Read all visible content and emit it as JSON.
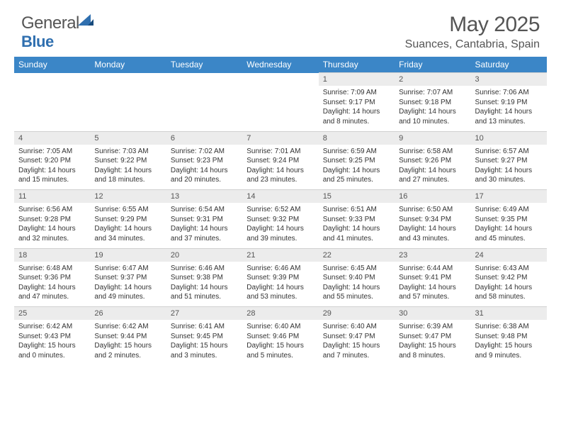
{
  "logo": {
    "general": "General",
    "blue": "Blue"
  },
  "title": "May 2025",
  "location": "Suances, Cantabria, Spain",
  "colors": {
    "header_bg": "#3b86c7",
    "header_text": "#ffffff",
    "daynum_bg": "#ececec",
    "text": "#555555",
    "logo_blue": "#2f6faf"
  },
  "day_names": [
    "Sunday",
    "Monday",
    "Tuesday",
    "Wednesday",
    "Thursday",
    "Friday",
    "Saturday"
  ],
  "weeks": [
    {
      "nums": [
        "",
        "",
        "",
        "",
        "1",
        "2",
        "3"
      ],
      "cells": [
        null,
        null,
        null,
        null,
        {
          "sr": "7:09 AM",
          "ss": "9:17 PM",
          "dl": "14 hours and 8 minutes."
        },
        {
          "sr": "7:07 AM",
          "ss": "9:18 PM",
          "dl": "14 hours and 10 minutes."
        },
        {
          "sr": "7:06 AM",
          "ss": "9:19 PM",
          "dl": "14 hours and 13 minutes."
        }
      ]
    },
    {
      "nums": [
        "4",
        "5",
        "6",
        "7",
        "8",
        "9",
        "10"
      ],
      "cells": [
        {
          "sr": "7:05 AM",
          "ss": "9:20 PM",
          "dl": "14 hours and 15 minutes."
        },
        {
          "sr": "7:03 AM",
          "ss": "9:22 PM",
          "dl": "14 hours and 18 minutes."
        },
        {
          "sr": "7:02 AM",
          "ss": "9:23 PM",
          "dl": "14 hours and 20 minutes."
        },
        {
          "sr": "7:01 AM",
          "ss": "9:24 PM",
          "dl": "14 hours and 23 minutes."
        },
        {
          "sr": "6:59 AM",
          "ss": "9:25 PM",
          "dl": "14 hours and 25 minutes."
        },
        {
          "sr": "6:58 AM",
          "ss": "9:26 PM",
          "dl": "14 hours and 27 minutes."
        },
        {
          "sr": "6:57 AM",
          "ss": "9:27 PM",
          "dl": "14 hours and 30 minutes."
        }
      ]
    },
    {
      "nums": [
        "11",
        "12",
        "13",
        "14",
        "15",
        "16",
        "17"
      ],
      "cells": [
        {
          "sr": "6:56 AM",
          "ss": "9:28 PM",
          "dl": "14 hours and 32 minutes."
        },
        {
          "sr": "6:55 AM",
          "ss": "9:29 PM",
          "dl": "14 hours and 34 minutes."
        },
        {
          "sr": "6:54 AM",
          "ss": "9:31 PM",
          "dl": "14 hours and 37 minutes."
        },
        {
          "sr": "6:52 AM",
          "ss": "9:32 PM",
          "dl": "14 hours and 39 minutes."
        },
        {
          "sr": "6:51 AM",
          "ss": "9:33 PM",
          "dl": "14 hours and 41 minutes."
        },
        {
          "sr": "6:50 AM",
          "ss": "9:34 PM",
          "dl": "14 hours and 43 minutes."
        },
        {
          "sr": "6:49 AM",
          "ss": "9:35 PM",
          "dl": "14 hours and 45 minutes."
        }
      ]
    },
    {
      "nums": [
        "18",
        "19",
        "20",
        "21",
        "22",
        "23",
        "24"
      ],
      "cells": [
        {
          "sr": "6:48 AM",
          "ss": "9:36 PM",
          "dl": "14 hours and 47 minutes."
        },
        {
          "sr": "6:47 AM",
          "ss": "9:37 PM",
          "dl": "14 hours and 49 minutes."
        },
        {
          "sr": "6:46 AM",
          "ss": "9:38 PM",
          "dl": "14 hours and 51 minutes."
        },
        {
          "sr": "6:46 AM",
          "ss": "9:39 PM",
          "dl": "14 hours and 53 minutes."
        },
        {
          "sr": "6:45 AM",
          "ss": "9:40 PM",
          "dl": "14 hours and 55 minutes."
        },
        {
          "sr": "6:44 AM",
          "ss": "9:41 PM",
          "dl": "14 hours and 57 minutes."
        },
        {
          "sr": "6:43 AM",
          "ss": "9:42 PM",
          "dl": "14 hours and 58 minutes."
        }
      ]
    },
    {
      "nums": [
        "25",
        "26",
        "27",
        "28",
        "29",
        "30",
        "31"
      ],
      "cells": [
        {
          "sr": "6:42 AM",
          "ss": "9:43 PM",
          "dl": "15 hours and 0 minutes."
        },
        {
          "sr": "6:42 AM",
          "ss": "9:44 PM",
          "dl": "15 hours and 2 minutes."
        },
        {
          "sr": "6:41 AM",
          "ss": "9:45 PM",
          "dl": "15 hours and 3 minutes."
        },
        {
          "sr": "6:40 AM",
          "ss": "9:46 PM",
          "dl": "15 hours and 5 minutes."
        },
        {
          "sr": "6:40 AM",
          "ss": "9:47 PM",
          "dl": "15 hours and 7 minutes."
        },
        {
          "sr": "6:39 AM",
          "ss": "9:47 PM",
          "dl": "15 hours and 8 minutes."
        },
        {
          "sr": "6:38 AM",
          "ss": "9:48 PM",
          "dl": "15 hours and 9 minutes."
        }
      ]
    }
  ],
  "labels": {
    "sunrise": "Sunrise: ",
    "sunset": "Sunset: ",
    "daylight": "Daylight: "
  }
}
